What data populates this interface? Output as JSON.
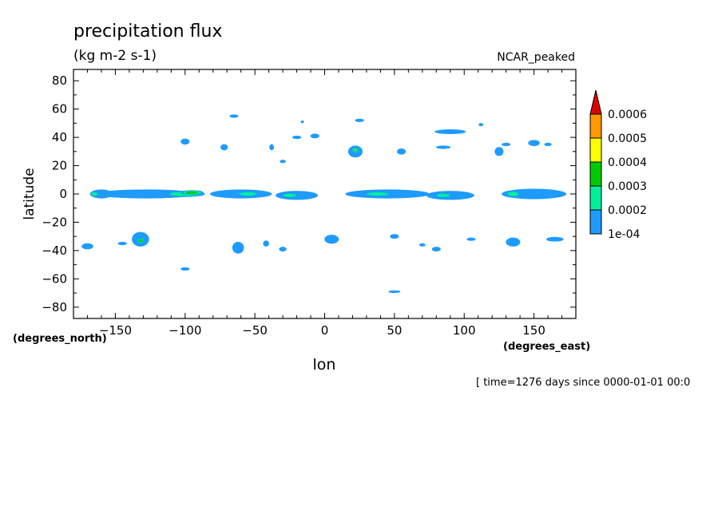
{
  "title": "precipitation flux",
  "units": "(kg m-2 s-1)",
  "dataset_label": "NCAR_peaked",
  "time_label": "[ time=1276 days since 0000-01-01 00:0",
  "chart_data": {
    "type": "heatmap",
    "xlabel": "lon",
    "ylabel": "latitude",
    "x_units": "(degrees_east)",
    "y_units": "(degrees_north)",
    "xlim": [
      -180,
      180
    ],
    "ylim": [
      -88,
      88
    ],
    "x_ticks": [
      -150,
      -100,
      -50,
      0,
      50,
      100,
      150
    ],
    "y_ticks": [
      80,
      60,
      40,
      20,
      0,
      -20,
      -40,
      -60,
      -80
    ],
    "legend_position": "right",
    "colorbar": {
      "labels": [
        "0.0006",
        "0.0005",
        "0.0004",
        "0.0003",
        "0.0002",
        "1e-04"
      ],
      "levels": [
        0.0001,
        0.0002,
        0.0003,
        0.0004,
        0.0005,
        0.0006
      ],
      "colors": [
        "#1e9bff",
        "#00f09a",
        "#00cc00",
        "#ffff00",
        "#ff9900",
        "#dd0000"
      ]
    },
    "contours": [
      {
        "lon": -128,
        "lat": 0,
        "w": 72,
        "h": 6,
        "level": 1
      },
      {
        "lon": -100,
        "lat": 0,
        "w": 28,
        "h": 4,
        "level": 2
      },
      {
        "lon": -95,
        "lat": 1,
        "w": 16,
        "h": 3,
        "level": 3
      },
      {
        "lon": -60,
        "lat": 0,
        "w": 44,
        "h": 6,
        "level": 1
      },
      {
        "lon": -55,
        "lat": 0,
        "w": 16,
        "h": 3,
        "level": 2
      },
      {
        "lon": -160,
        "lat": 0,
        "w": 16,
        "h": 6,
        "level": 1
      },
      {
        "lon": -165,
        "lat": 0,
        "w": 6,
        "h": 3,
        "level": 2
      },
      {
        "lon": -20,
        "lat": -1,
        "w": 30,
        "h": 6,
        "level": 1
      },
      {
        "lon": -25,
        "lat": -1,
        "w": 12,
        "h": 3,
        "level": 2
      },
      {
        "lon": 45,
        "lat": 0,
        "w": 60,
        "h": 6,
        "level": 1
      },
      {
        "lon": 38,
        "lat": 0,
        "w": 20,
        "h": 3,
        "level": 2
      },
      {
        "lon": 90,
        "lat": -1,
        "w": 34,
        "h": 6,
        "level": 1
      },
      {
        "lon": 85,
        "lat": -1,
        "w": 12,
        "h": 3,
        "level": 2
      },
      {
        "lon": 150,
        "lat": 0,
        "w": 46,
        "h": 7,
        "level": 1
      },
      {
        "lon": 135,
        "lat": 0,
        "w": 10,
        "h": 4,
        "level": 2
      },
      {
        "lon": 22,
        "lat": 30,
        "w": 10,
        "h": 8,
        "level": 1
      },
      {
        "lon": 22,
        "lat": 31,
        "w": 6,
        "h": 4,
        "level": 3
      },
      {
        "lon": 22,
        "lat": 31,
        "w": 3,
        "h": 2,
        "level": 5
      },
      {
        "lon": -132,
        "lat": -32,
        "w": 12,
        "h": 10,
        "level": 1
      },
      {
        "lon": -132,
        "lat": -33,
        "w": 5,
        "h": 4,
        "level": 3
      },
      {
        "lon": -100,
        "lat": 37,
        "w": 6,
        "h": 4,
        "level": 1
      },
      {
        "lon": 150,
        "lat": 36,
        "w": 8,
        "h": 4,
        "level": 1
      },
      {
        "lon": 135,
        "lat": -34,
        "w": 10,
        "h": 6,
        "level": 1
      },
      {
        "lon": 5,
        "lat": -32,
        "w": 10,
        "h": 6,
        "level": 1
      },
      {
        "lon": -62,
        "lat": -38,
        "w": 8,
        "h": 8,
        "level": 1
      },
      {
        "lon": -170,
        "lat": -37,
        "w": 8,
        "h": 4,
        "level": 1
      },
      {
        "lon": 90,
        "lat": 44,
        "w": 22,
        "h": 3,
        "level": 1
      },
      {
        "lon": 125,
        "lat": 30,
        "w": 6,
        "h": 6,
        "level": 1
      },
      {
        "lon": 165,
        "lat": -32,
        "w": 12,
        "h": 3,
        "level": 1
      },
      {
        "lon": -65,
        "lat": 55,
        "w": 6,
        "h": 2,
        "level": 1
      },
      {
        "lon": -100,
        "lat": -53,
        "w": 6,
        "h": 2,
        "level": 1
      },
      {
        "lon": 50,
        "lat": -69,
        "w": 8,
        "h": 1.5,
        "level": 1
      },
      {
        "lon": 55,
        "lat": 30,
        "w": 6,
        "h": 4,
        "level": 1
      },
      {
        "lon": 80,
        "lat": -39,
        "w": 6,
        "h": 3,
        "level": 1
      },
      {
        "lon": -145,
        "lat": -35,
        "w": 6,
        "h": 2,
        "level": 1
      },
      {
        "lon": -7,
        "lat": 41,
        "w": 6,
        "h": 3,
        "level": 1
      },
      {
        "lon": -72,
        "lat": 33,
        "w": 5,
        "h": 4,
        "level": 1
      },
      {
        "lon": -38,
        "lat": 33,
        "w": 3,
        "h": 4,
        "level": 1
      },
      {
        "lon": -30,
        "lat": 23,
        "w": 4,
        "h": 2,
        "level": 1
      },
      {
        "lon": -30,
        "lat": -39,
        "w": 5,
        "h": 3,
        "level": 1
      },
      {
        "lon": -42,
        "lat": -35,
        "w": 4,
        "h": 4,
        "level": 1
      },
      {
        "lon": 25,
        "lat": 52,
        "w": 6,
        "h": 2,
        "level": 1
      },
      {
        "lon": 50,
        "lat": -30,
        "w": 6,
        "h": 3,
        "level": 1
      },
      {
        "lon": 112,
        "lat": 49,
        "w": 3,
        "h": 2,
        "level": 1
      },
      {
        "lon": 85,
        "lat": 33,
        "w": 10,
        "h": 2,
        "level": 1
      },
      {
        "lon": -20,
        "lat": 40,
        "w": 6,
        "h": 2,
        "level": 1
      },
      {
        "lon": 105,
        "lat": -32,
        "w": 6,
        "h": 2,
        "level": 1
      },
      {
        "lon": 130,
        "lat": 35,
        "w": 6,
        "h": 2,
        "level": 1
      },
      {
        "lon": 160,
        "lat": 35,
        "w": 5,
        "h": 2,
        "level": 1
      },
      {
        "lon": -16,
        "lat": 51,
        "w": 2,
        "h": 1.5,
        "level": 1
      },
      {
        "lon": 70,
        "lat": -36,
        "w": 4,
        "h": 2,
        "level": 1
      }
    ]
  }
}
